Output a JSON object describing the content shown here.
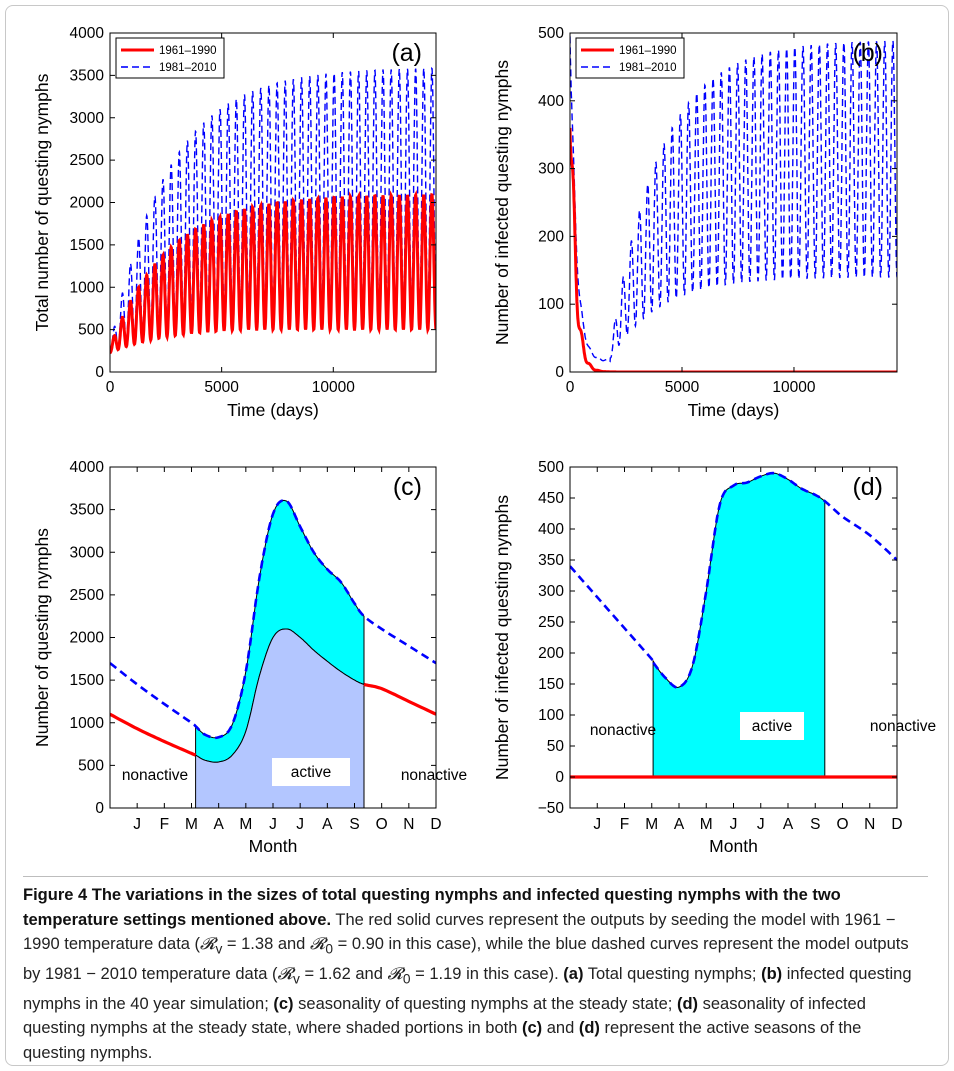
{
  "figure": {
    "caption": {
      "title": "Figure 4 The variations in the sizes of total questing nymphs and infected questing nymphs with the two temperature settings mentioned above.",
      "p1": " The red solid curves represent the outputs by seeding the model with 1961 − 1990 temperature data (",
      "rv1": "𝓡",
      "rv1_sub": "v",
      "rv1_eq": " = 1.38 and ",
      "r01": "𝓡",
      "r01_sub": "0",
      "r01_eq": " = 0.90 in this case), while the blue dashed curves represent the model outputs by 1981 − 2010 temperature data (",
      "rv2": "𝓡",
      "rv2_sub": "v",
      "rv2_eq": " = 1.62 and ",
      "r02": "𝓡",
      "r02_sub": "0",
      "r02_eq": " = 1.19 in this case). ",
      "a_label": "(a)",
      "a_text": " Total questing nymphs; ",
      "b_label": "(b)",
      "b_text": " infected questing nymphs in the 40 year simulation; ",
      "c_label": "(c)",
      "c_text": " seasonality of questing nymphs at the steady state; ",
      "d_label": "(d)",
      "d_text": " seasonality of infected questing nymphs at the steady state, where shaded portions in both ",
      "c2_label": "(c)",
      "and_text": " and ",
      "d2_label": "(d)",
      "end_text": " represent the active seasons of the questing nymphs."
    },
    "colors": {
      "red": "#ff0000",
      "blue": "#0000ff",
      "cyan": "#00ffff",
      "lavender": "#b3c6ff"
    }
  },
  "chart_data": [
    {
      "id": "a",
      "type": "line",
      "panel_label": "(a)",
      "xlabel": "Time (days)",
      "ylabel": "Total number of questing nymphs",
      "xlim": [
        0,
        14600
      ],
      "ylim": [
        0,
        4000
      ],
      "xticks": [
        0,
        5000,
        10000
      ],
      "yticks": [
        0,
        500,
        1000,
        1500,
        2000,
        2500,
        3000,
        3500,
        4000
      ],
      "legend": {
        "position": "top-left",
        "entries": [
          "1961–1990",
          "1981–2010"
        ]
      },
      "series": [
        {
          "name": "1961–1990",
          "style": "solid",
          "color": "#ff0000",
          "period_days": 365,
          "initial": 300,
          "steady_min": 500,
          "steady_max": 2100
        },
        {
          "name": "1981–2010",
          "style": "dashed",
          "color": "#0000ff",
          "period_days": 365,
          "initial": 300,
          "steady_min": 700,
          "steady_max": 3600
        }
      ]
    },
    {
      "id": "b",
      "type": "line",
      "panel_label": "(b)",
      "xlabel": "Time (days)",
      "ylabel": "Number of infected questing nymphs",
      "xlim": [
        0,
        14600
      ],
      "ylim": [
        0,
        500
      ],
      "xticks": [
        0,
        5000,
        10000
      ],
      "yticks": [
        0,
        100,
        200,
        300,
        400,
        500
      ],
      "legend": {
        "position": "top-left",
        "entries": [
          "1961–1990",
          "1981–2010"
        ]
      },
      "series": [
        {
          "name": "1961–1990",
          "style": "solid",
          "color": "#ff0000",
          "initial": 480,
          "final": 0
        },
        {
          "name": "1981–2010",
          "style": "dashed",
          "color": "#0000ff",
          "initial": 480,
          "trough_day": 2500,
          "steady_min": 140,
          "steady_max": 490
        }
      ]
    },
    {
      "id": "c",
      "type": "area",
      "panel_label": "(c)",
      "xlabel": "Month",
      "ylabel": "Number of questing nymphs",
      "xlim": [
        0,
        12
      ],
      "ylim": [
        0,
        4000
      ],
      "xticks": [
        "J",
        "F",
        "M",
        "A",
        "M",
        "J",
        "J",
        "A",
        "S",
        "O",
        "N",
        "D"
      ],
      "yticks": [
        0,
        500,
        1000,
        1500,
        2000,
        2500,
        3000,
        3500,
        4000
      ],
      "active_window": [
        3.15,
        9.35
      ],
      "annotations": [
        "nonactive",
        "active",
        "nonactive"
      ],
      "series": [
        {
          "name": "1961–1990",
          "style": "solid",
          "color": "#ff0000",
          "x": [
            0,
            1,
            2,
            3,
            3.15,
            3.5,
            4,
            4.5,
            5,
            5.5,
            6,
            6.5,
            7,
            7.5,
            8,
            8.5,
            9,
            9.35,
            10,
            11,
            12
          ],
          "y": [
            1100,
            930,
            780,
            640,
            620,
            560,
            540,
            620,
            900,
            1550,
            2000,
            2100,
            2000,
            1850,
            1720,
            1600,
            1500,
            1450,
            1400,
            1250,
            1100
          ]
        },
        {
          "name": "1981–2010",
          "style": "dashed",
          "color": "#0000ff",
          "x": [
            0,
            1,
            2,
            3,
            3.15,
            3.5,
            4,
            4.5,
            5,
            5.5,
            6,
            6.5,
            7,
            7.5,
            8,
            8.5,
            9,
            9.35,
            10,
            11,
            12
          ],
          "y": [
            1700,
            1450,
            1220,
            1000,
            960,
            860,
            830,
            980,
            1600,
            2700,
            3450,
            3600,
            3300,
            3000,
            2800,
            2650,
            2400,
            2250,
            2100,
            1900,
            1700
          ]
        }
      ]
    },
    {
      "id": "d",
      "type": "area",
      "panel_label": "(d)",
      "xlabel": "Month",
      "ylabel": "Number of infected questing nymphs",
      "xlim": [
        0,
        12
      ],
      "ylim": [
        -50,
        500
      ],
      "xticks": [
        "J",
        "F",
        "M",
        "A",
        "M",
        "J",
        "J",
        "A",
        "S",
        "O",
        "N",
        "D"
      ],
      "yticks": [
        -50,
        0,
        50,
        100,
        150,
        200,
        250,
        300,
        350,
        400,
        450,
        500
      ],
      "active_window": [
        3.05,
        9.35
      ],
      "annotations": [
        "nonactive",
        "active",
        "nonactive"
      ],
      "series": [
        {
          "name": "1961–1990",
          "style": "solid",
          "color": "#ff0000",
          "x": [
            0,
            12
          ],
          "y": [
            0,
            0
          ]
        },
        {
          "name": "1981–2010",
          "style": "dashed",
          "color": "#0000ff",
          "x": [
            0,
            1,
            2,
            3,
            3.05,
            3.5,
            4,
            4.5,
            5,
            5.5,
            6,
            6.5,
            7,
            7.5,
            8,
            8.5,
            9,
            9.35,
            10,
            11,
            12
          ],
          "y": [
            340,
            290,
            240,
            190,
            185,
            160,
            145,
            180,
            300,
            440,
            470,
            475,
            485,
            490,
            480,
            465,
            455,
            445,
            420,
            390,
            350
          ]
        }
      ]
    }
  ]
}
